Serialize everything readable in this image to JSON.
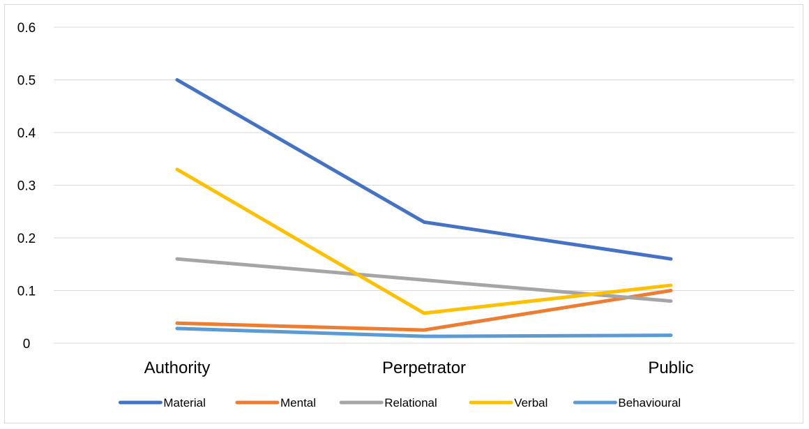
{
  "chart_data": {
    "type": "line",
    "title": "",
    "xlabel": "",
    "ylabel": "",
    "categories": [
      "Authority",
      "Perpetrator",
      "Public"
    ],
    "ylim": [
      0,
      0.6
    ],
    "yticks": [
      "0",
      "0.1",
      "0.2",
      "0.3",
      "0.4",
      "0.5",
      "0.6"
    ],
    "grid": "horizontal",
    "legend_position": "bottom",
    "series": [
      {
        "name": "Material",
        "values": [
          0.5,
          0.23,
          0.16
        ],
        "color": "#4472c4"
      },
      {
        "name": "Mental",
        "values": [
          0.038,
          0.025,
          0.1
        ],
        "color": "#ed7d31"
      },
      {
        "name": "Relational",
        "values": [
          0.16,
          0.12,
          0.08
        ],
        "color": "#a5a5a5"
      },
      {
        "name": "Verbal",
        "values": [
          0.33,
          0.057,
          0.11
        ],
        "color": "#ffc000"
      },
      {
        "name": "Behavioural",
        "values": [
          0.028,
          0.013,
          0.015
        ],
        "color": "#5b9bd5"
      }
    ]
  }
}
